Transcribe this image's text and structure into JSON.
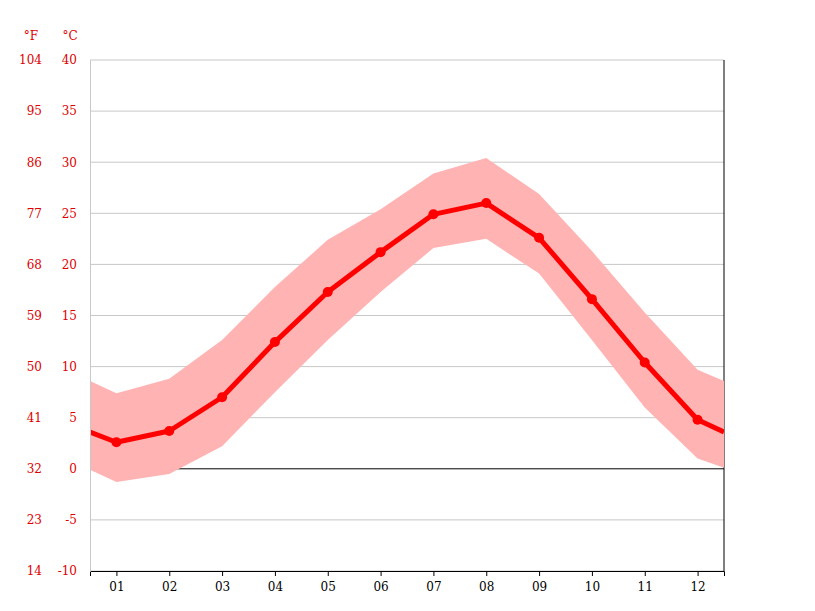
{
  "chart_data": {
    "type": "line",
    "y_label": "°C",
    "y2_label": "°F",
    "x": [
      0.5,
      1,
      2,
      3,
      4,
      5,
      6,
      7,
      8,
      9,
      10,
      11,
      12,
      12.5
    ],
    "xlim": [
      0.5,
      12.5
    ],
    "xticks": [
      {
        "value": 1,
        "label": "01"
      },
      {
        "value": 2,
        "label": "02"
      },
      {
        "value": 3,
        "label": "03"
      },
      {
        "value": 4,
        "label": "04"
      },
      {
        "value": 5,
        "label": "05"
      },
      {
        "value": 6,
        "label": "06"
      },
      {
        "value": 7,
        "label": "07"
      },
      {
        "value": 8,
        "label": "08"
      },
      {
        "value": 9,
        "label": "09"
      },
      {
        "value": 10,
        "label": "10"
      },
      {
        "value": 11,
        "label": "11"
      },
      {
        "value": 12,
        "label": "12"
      }
    ],
    "ylim": [
      -10,
      40
    ],
    "yticks": [
      -10,
      -5,
      0,
      5,
      10,
      15,
      20,
      25,
      30,
      35,
      40
    ],
    "y2lim": [
      14,
      104
    ],
    "y2ticks": [
      14,
      23,
      32,
      41,
      50,
      59,
      68,
      77,
      86,
      95,
      104
    ],
    "grid": true,
    "series": [
      {
        "type": "area",
        "color": "#ffb3b3",
        "low": [
          -0.1,
          -1.3,
          -0.5,
          2.2,
          7.5,
          12.6,
          17.3,
          21.6,
          22.5,
          19.1,
          12.6,
          6.0,
          1.0,
          0.1
        ],
        "high": [
          8.6,
          7.4,
          8.8,
          12.6,
          17.8,
          22.4,
          25.4,
          28.9,
          30.4,
          26.9,
          21.3,
          15.3,
          9.7,
          8.6
        ]
      },
      {
        "type": "line",
        "color": "#ff0000",
        "marker": "circle",
        "values": [
          3.6,
          2.6,
          3.7,
          7.0,
          12.4,
          17.3,
          21.2,
          24.9,
          26.0,
          22.6,
          16.6,
          10.4,
          4.8,
          3.6
        ]
      }
    ]
  }
}
